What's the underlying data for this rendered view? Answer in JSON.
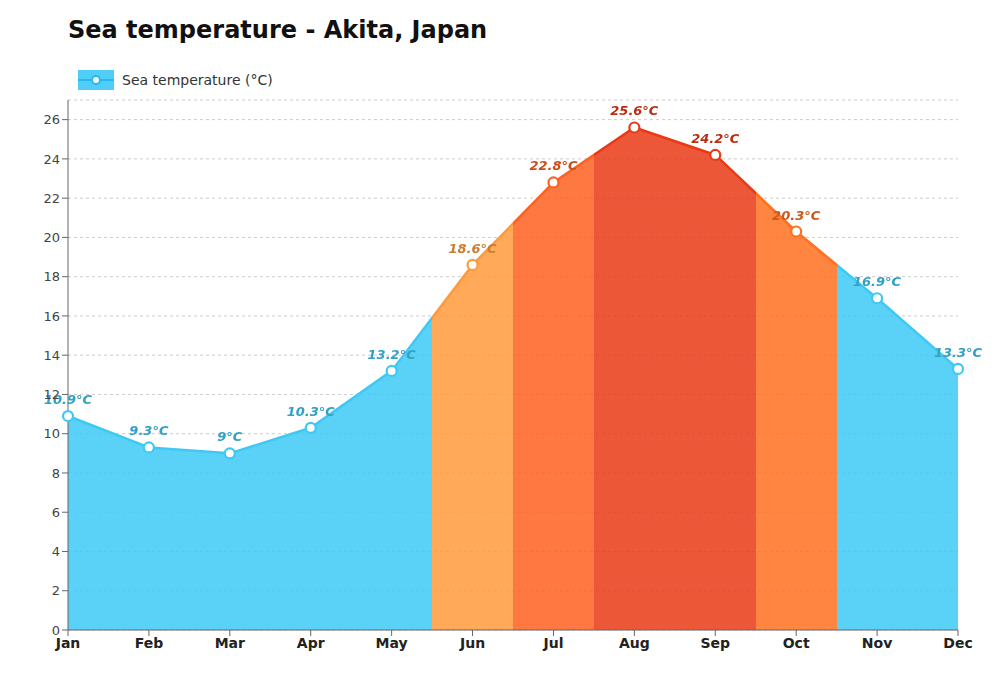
{
  "chart_data": {
    "type": "area",
    "title": "Sea temperature - Akita, Japan",
    "categories": [
      "Jan",
      "Feb",
      "Mar",
      "Apr",
      "May",
      "Jun",
      "Jul",
      "Aug",
      "Sep",
      "Oct",
      "Nov",
      "Dec"
    ],
    "series": [
      {
        "name": "Sea temperature (°C)",
        "color": "#29B6F6",
        "values": [
          10.9,
          9.3,
          9.0,
          10.3,
          13.2,
          18.6,
          22.8,
          25.6,
          24.2,
          20.3,
          16.9,
          13.3
        ],
        "value_labels": [
          "10.9°C",
          "9.3°C",
          "9°C",
          "10.3°C",
          "13.2°C",
          "18.6°C",
          "22.8°C",
          "25.6°C",
          "24.2°C",
          "20.3°C",
          "16.9°C",
          "13.3°C"
        ],
        "colors": [
          "#3EC9F5",
          "#3EC9F5",
          "#3EC9F5",
          "#3EC9F5",
          "#3EC9F5",
          "#FF9A3C",
          "#FF6020",
          "#E83A15",
          "#E83A15",
          "#FF7020",
          "#3EC9F5",
          "#3EC9F5"
        ]
      }
    ],
    "ylim": [
      0,
      27
    ],
    "yticks": [
      0,
      2,
      4,
      6,
      8,
      10,
      12,
      14,
      16,
      18,
      20,
      22,
      24,
      26
    ],
    "grid": true,
    "legend": "upper left",
    "data_labels": true
  }
}
